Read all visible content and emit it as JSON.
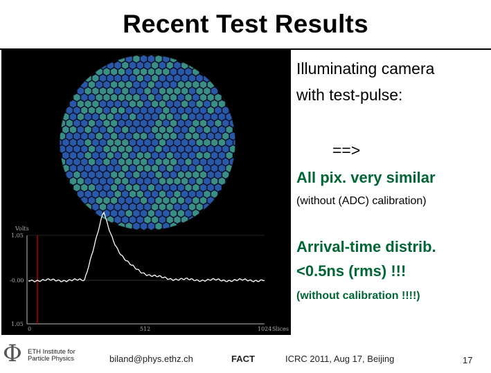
{
  "slide": {
    "title": "Recent Test Results"
  },
  "camera": {
    "trace_labels": {
      "y_unit": "Volts",
      "y_top": "1.05",
      "y_mid": "-0.00",
      "y_bottom": "1.05",
      "x_mid": "512",
      "x_right": "1024",
      "x_unit": "Slices",
      "x_left": "0"
    }
  },
  "text": {
    "line1": "Illuminating camera",
    "line2": "with test-pulse:",
    "arrow": "==>",
    "pix_similar": "All pix. very similar",
    "without_adc": "(without (ADC) calibration)",
    "arrival1": "Arrival-time distrib.",
    "arrival2": "<0.5ns (rms) !!!",
    "without_cal": "(without calibration !!!!)"
  },
  "footer": {
    "logo_line1": "ETH Institute for",
    "logo_line2": "Particle Physics",
    "email": "biland@phys.ethz.ch",
    "project": "FACT",
    "conference": "ICRC 2011, Aug 17, Beijing",
    "page_number": "17"
  },
  "colors": {
    "accent_green": "#006633",
    "pixel_blue": "#2a58a8",
    "pixel_green": "#3a8f84",
    "cursor_red": "#cc0000"
  }
}
